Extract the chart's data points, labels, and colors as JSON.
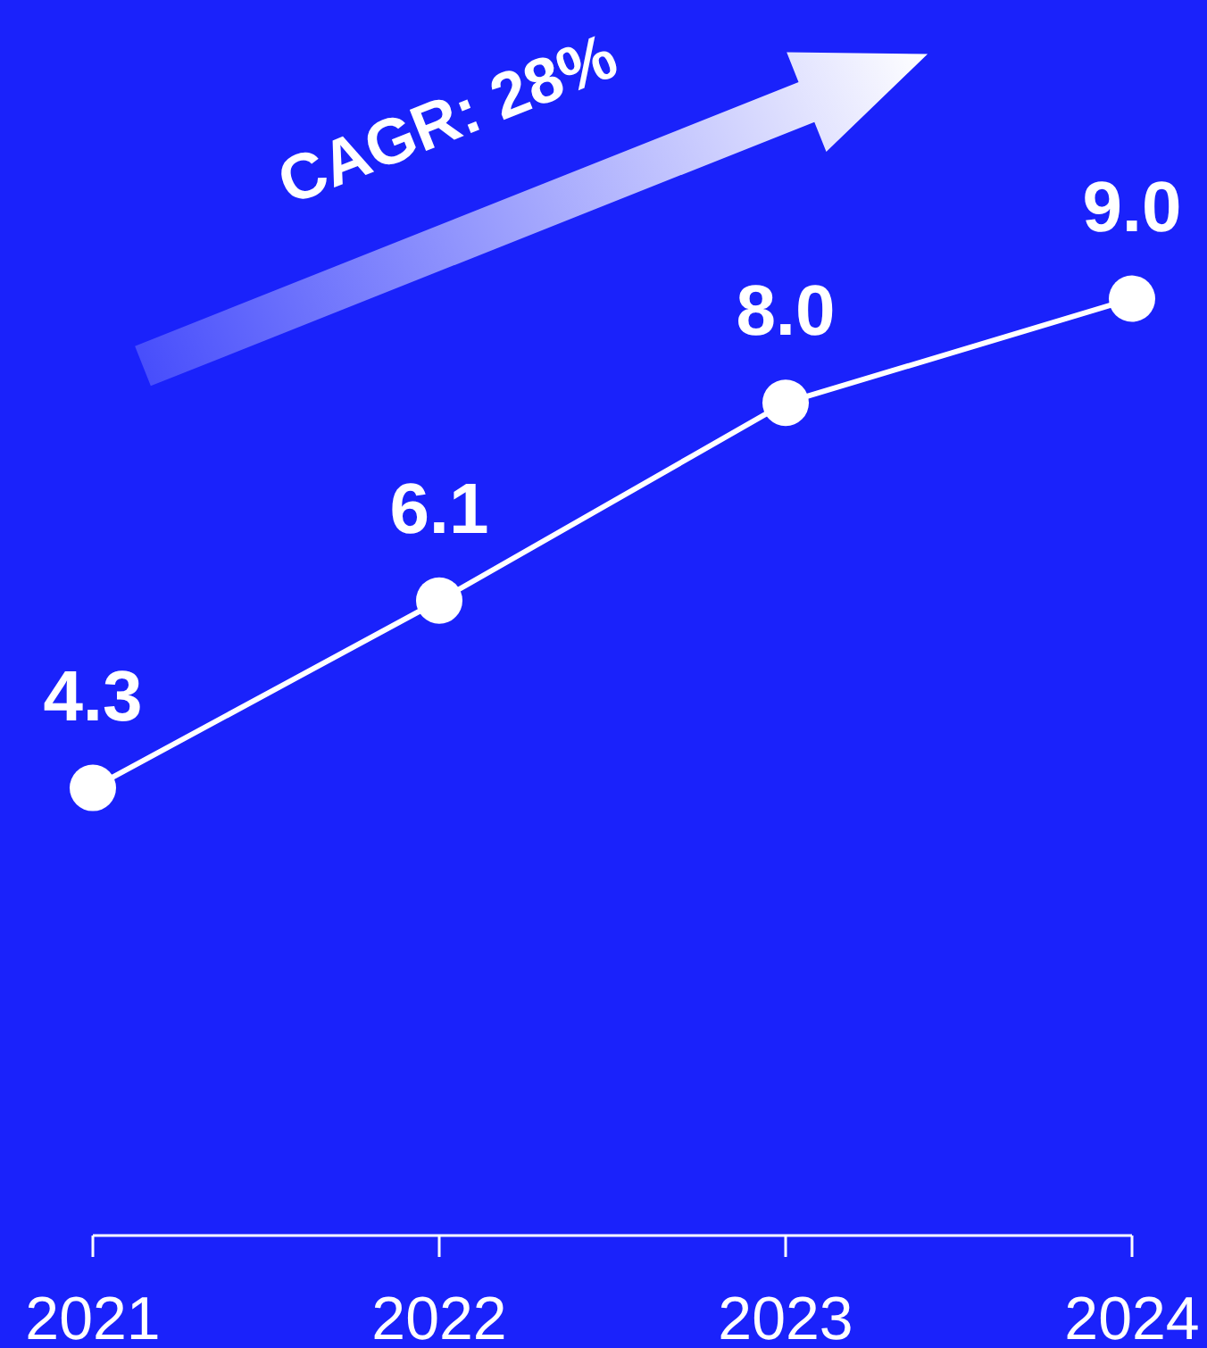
{
  "chart_data": {
    "type": "line",
    "categories": [
      "2021",
      "2022",
      "2023",
      "2024"
    ],
    "series": [
      {
        "color": "#ffffff",
        "values": [
          4.3,
          6.1,
          8.0,
          9.0
        ],
        "value_labels": [
          "4.3",
          "6.1",
          "8.0",
          "9.0"
        ]
      }
    ],
    "tick_labels": "x",
    "marker": "circle",
    "line_style": "solid",
    "annotations": [
      "CAGR: 28%"
    ]
  }
}
